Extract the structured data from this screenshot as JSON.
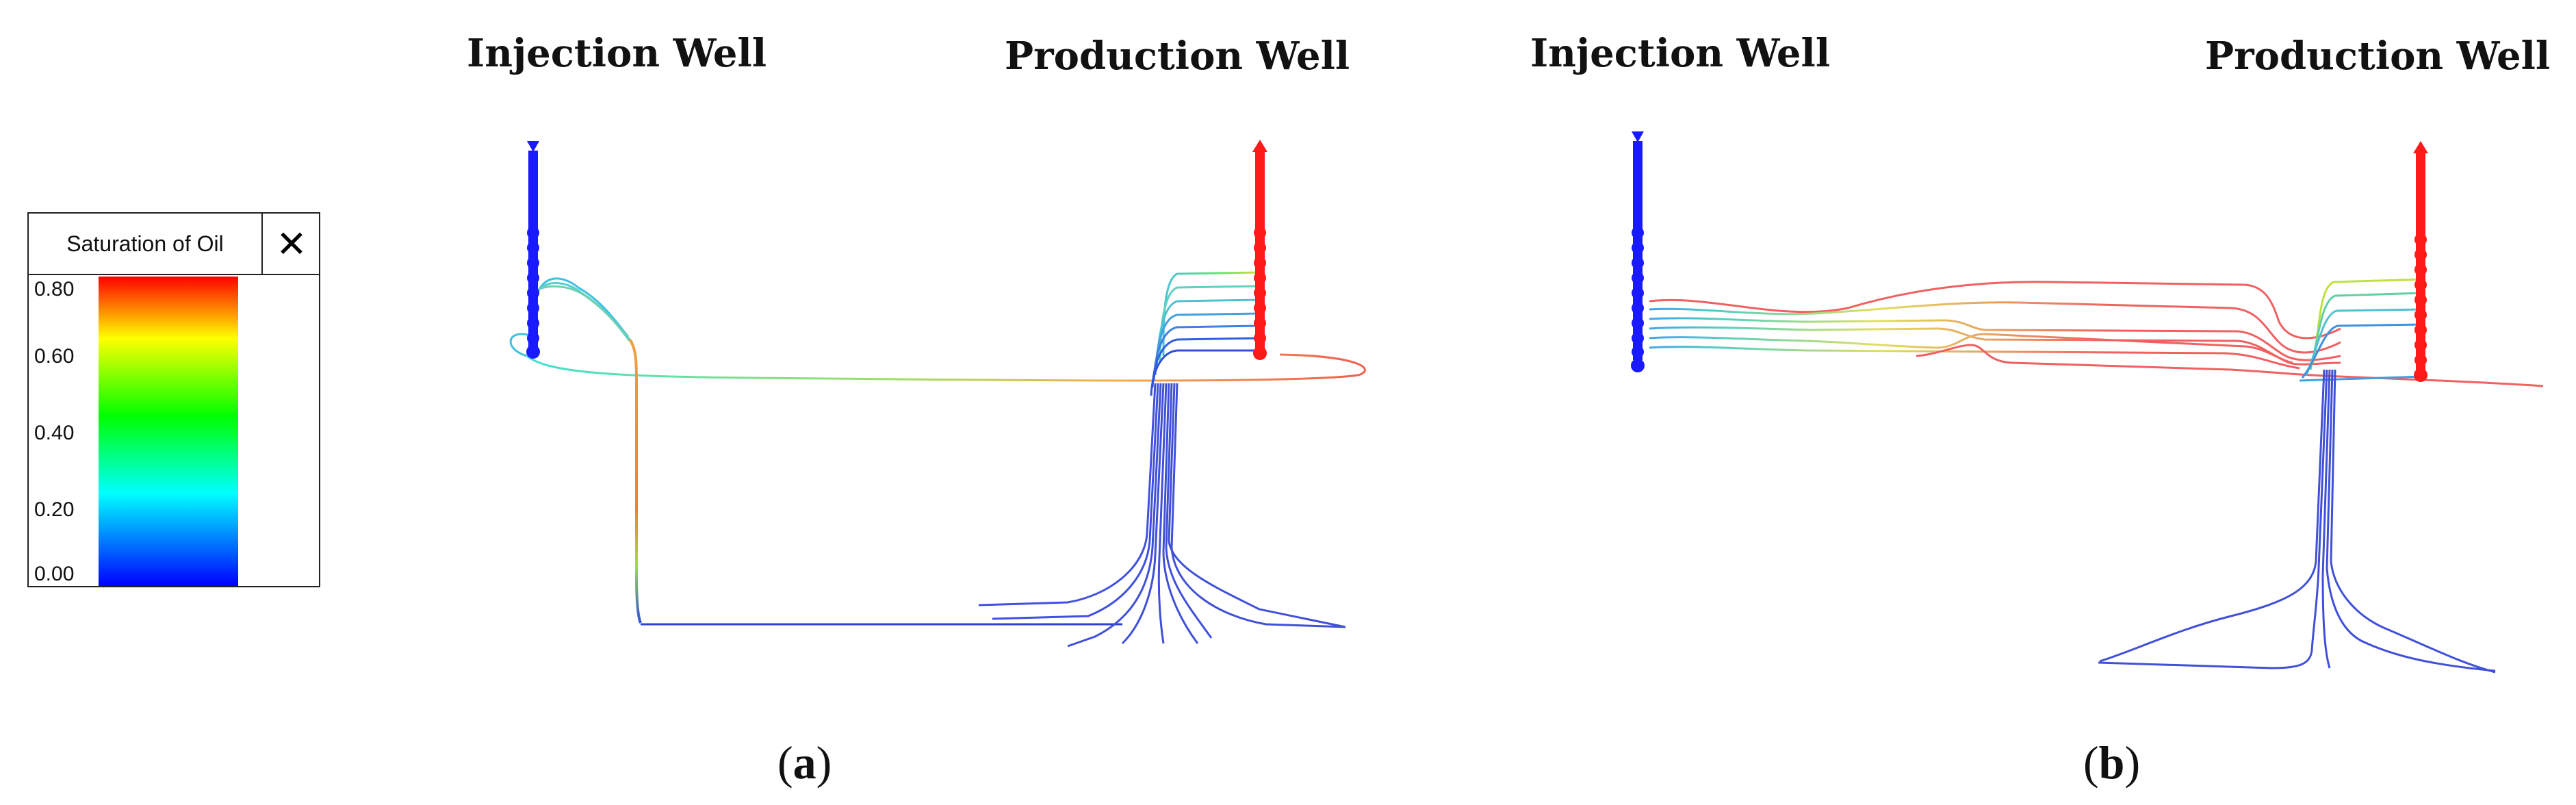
{
  "panels": [
    {
      "injection_label": "Injection Well",
      "production_label": "Production Well",
      "caption": "a"
    },
    {
      "injection_label": "Injection Well",
      "production_label": "Production Well",
      "caption": "b"
    }
  ],
  "legend": {
    "title": "Saturation of Oil",
    "close_icon": "close-icon",
    "ticks": [
      "0.80",
      "0.60",
      "0.40",
      "0.20",
      "0.00"
    ],
    "colors": {
      "low": "#0000ff",
      "mid_low": "#00ffff",
      "mid": "#00ff00",
      "mid_high": "#ffff00",
      "high": "#ff0000"
    }
  },
  "colors": {
    "injection_well": "#1a1aff",
    "production_well": "#ff1a1a"
  }
}
